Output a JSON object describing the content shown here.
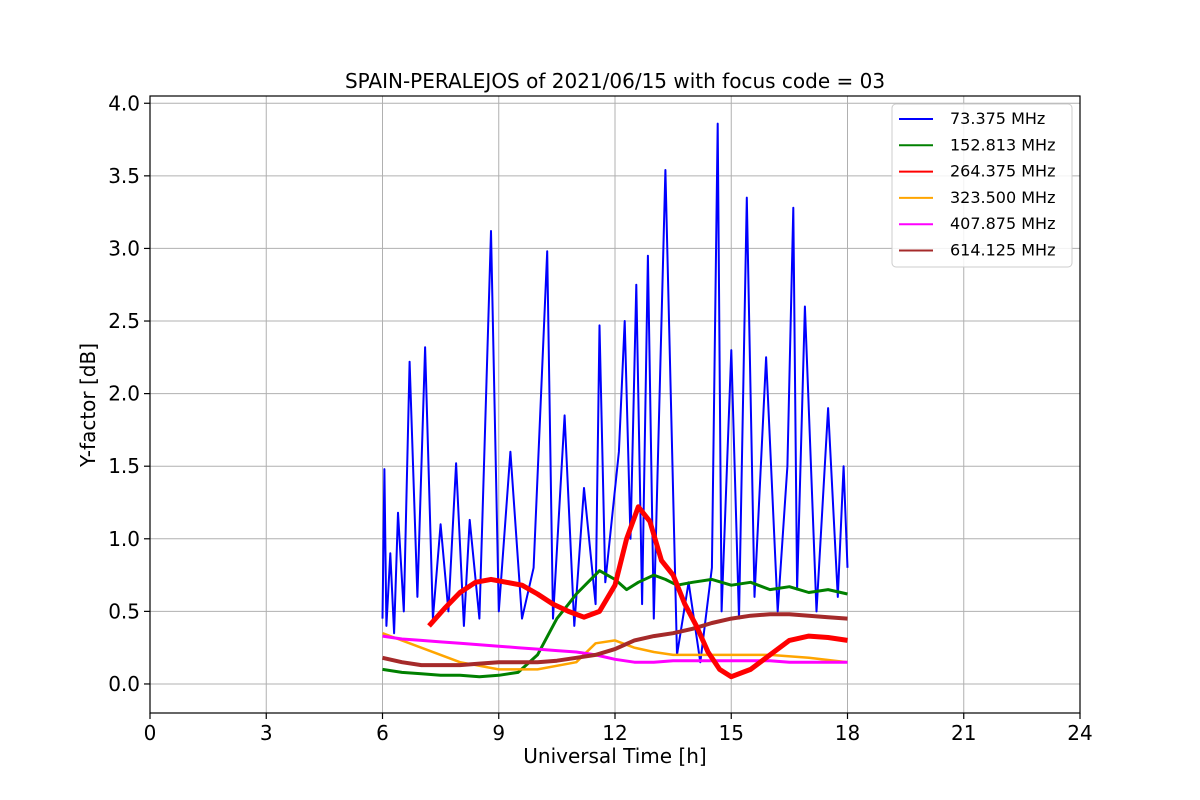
{
  "chart_data": {
    "type": "line",
    "title": "SPAIN-PERALEJOS of 2021/06/15 with focus code = 03",
    "xlabel": "Universal Time [h]",
    "ylabel": "Y-factor [dB]",
    "xlim": [
      0,
      24
    ],
    "ylim": [
      -0.2,
      4.05
    ],
    "xticks": [
      0,
      3,
      6,
      9,
      12,
      15,
      18,
      21,
      24
    ],
    "yticks": [
      0.0,
      0.5,
      1.0,
      1.5,
      2.0,
      2.5,
      3.0,
      3.5,
      4.0
    ],
    "xtick_labels": [
      "0",
      "3",
      "6",
      "9",
      "12",
      "15",
      "18",
      "21",
      "24"
    ],
    "ytick_labels": [
      "0.0",
      "0.5",
      "1.0",
      "1.5",
      "2.0",
      "2.5",
      "3.0",
      "3.5",
      "4.0"
    ],
    "grid": true,
    "legend_position": "top-right",
    "series": [
      {
        "name": "73.375 MHz",
        "color": "#0000ff",
        "x": [
          6.0,
          6.05,
          6.1,
          6.2,
          6.3,
          6.4,
          6.55,
          6.7,
          6.9,
          7.1,
          7.3,
          7.5,
          7.7,
          7.9,
          8.1,
          8.25,
          8.5,
          8.8,
          9.0,
          9.3,
          9.6,
          9.9,
          10.25,
          10.4,
          10.7,
          10.95,
          11.2,
          11.5,
          11.6,
          11.75,
          12.1,
          12.25,
          12.4,
          12.55,
          12.7,
          12.85,
          13.0,
          13.3,
          13.6,
          13.9,
          14.2,
          14.5,
          14.65,
          14.75,
          15.0,
          15.2,
          15.4,
          15.6,
          15.9,
          16.2,
          16.45,
          16.6,
          16.7,
          16.9,
          17.2,
          17.5,
          17.75,
          17.9,
          18.0
        ],
        "y": [
          0.45,
          1.48,
          0.4,
          0.9,
          0.35,
          1.18,
          0.5,
          2.22,
          0.6,
          2.32,
          0.45,
          1.1,
          0.5,
          1.52,
          0.4,
          1.13,
          0.45,
          3.12,
          0.5,
          1.6,
          0.45,
          0.8,
          2.98,
          0.45,
          1.85,
          0.4,
          1.35,
          0.55,
          2.47,
          0.7,
          1.6,
          2.5,
          1.0,
          2.75,
          0.55,
          2.95,
          0.45,
          3.54,
          0.2,
          0.7,
          0.15,
          0.8,
          3.86,
          0.5,
          2.3,
          0.45,
          3.35,
          0.6,
          2.25,
          0.5,
          1.5,
          3.28,
          0.65,
          2.6,
          0.5,
          1.9,
          0.6,
          1.5,
          0.8
        ]
      },
      {
        "name": "152.813 MHz",
        "color": "#008000",
        "x": [
          6.0,
          6.5,
          7.0,
          7.5,
          8.0,
          8.5,
          9.0,
          9.5,
          10.0,
          10.5,
          10.8,
          11.0,
          11.3,
          11.6,
          12.0,
          12.3,
          12.6,
          13.0,
          13.3,
          13.6,
          14.0,
          14.5,
          15.0,
          15.5,
          16.0,
          16.5,
          17.0,
          17.5,
          18.0
        ],
        "y": [
          0.1,
          0.08,
          0.07,
          0.06,
          0.06,
          0.05,
          0.06,
          0.08,
          0.2,
          0.45,
          0.55,
          0.62,
          0.7,
          0.78,
          0.72,
          0.65,
          0.7,
          0.75,
          0.72,
          0.68,
          0.7,
          0.72,
          0.68,
          0.7,
          0.65,
          0.67,
          0.63,
          0.65,
          0.62
        ]
      },
      {
        "name": "264.375 MHz",
        "color": "#ff0000",
        "x": [
          7.2,
          7.6,
          8.0,
          8.4,
          8.8,
          9.2,
          9.6,
          10.0,
          10.4,
          10.8,
          11.2,
          11.6,
          12.0,
          12.3,
          12.6,
          12.9,
          13.2,
          13.5,
          13.8,
          14.1,
          14.4,
          14.7,
          15.0,
          15.5,
          16.0,
          16.5,
          17.0,
          17.5,
          18.0
        ],
        "y": [
          0.4,
          0.52,
          0.63,
          0.7,
          0.72,
          0.7,
          0.68,
          0.62,
          0.55,
          0.5,
          0.46,
          0.5,
          0.68,
          1.0,
          1.22,
          1.12,
          0.85,
          0.75,
          0.55,
          0.4,
          0.22,
          0.1,
          0.05,
          0.1,
          0.2,
          0.3,
          0.33,
          0.32,
          0.3
        ]
      },
      {
        "name": "323.500 MHz",
        "color": "#ffa500",
        "x": [
          6.0,
          6.5,
          7.0,
          8.0,
          9.0,
          10.0,
          11.0,
          11.5,
          12.0,
          12.5,
          13.0,
          13.5,
          14.0,
          15.0,
          16.0,
          17.0,
          18.0
        ],
        "y": [
          0.35,
          0.3,
          0.25,
          0.15,
          0.1,
          0.1,
          0.15,
          0.28,
          0.3,
          0.25,
          0.22,
          0.2,
          0.2,
          0.2,
          0.2,
          0.18,
          0.15
        ]
      },
      {
        "name": "407.875 MHz",
        "color": "#ff00ff",
        "x": [
          6.0,
          6.5,
          7.0,
          7.5,
          8.0,
          8.5,
          9.0,
          9.5,
          10.0,
          10.5,
          11.0,
          11.5,
          12.0,
          12.5,
          13.0,
          13.5,
          14.0,
          14.5,
          15.0,
          15.5,
          16.0,
          16.5,
          17.0,
          17.5,
          18.0
        ],
        "y": [
          0.33,
          0.31,
          0.3,
          0.29,
          0.28,
          0.27,
          0.26,
          0.25,
          0.24,
          0.23,
          0.22,
          0.2,
          0.17,
          0.15,
          0.15,
          0.16,
          0.16,
          0.16,
          0.16,
          0.16,
          0.16,
          0.15,
          0.15,
          0.15,
          0.15
        ]
      },
      {
        "name": "614.125 MHz",
        "color": "#a52a2a",
        "x": [
          6.0,
          6.5,
          7.0,
          7.5,
          8.0,
          8.5,
          9.0,
          9.5,
          10.0,
          10.5,
          11.0,
          11.5,
          12.0,
          12.5,
          13.0,
          13.5,
          14.0,
          14.5,
          15.0,
          15.5,
          16.0,
          16.5,
          17.0,
          17.5,
          18.0
        ],
        "y": [
          0.18,
          0.15,
          0.13,
          0.13,
          0.13,
          0.14,
          0.15,
          0.15,
          0.15,
          0.16,
          0.18,
          0.2,
          0.24,
          0.3,
          0.33,
          0.35,
          0.38,
          0.42,
          0.45,
          0.47,
          0.48,
          0.48,
          0.47,
          0.46,
          0.45
        ]
      }
    ]
  }
}
